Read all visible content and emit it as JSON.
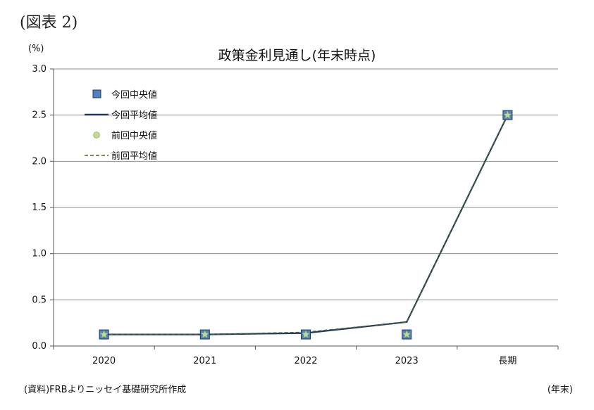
{
  "figure_label": "(図表 2)",
  "unit_label": "(%)",
  "source_note": "(資料)FRBよりニッセイ基礎研究所作成",
  "x_unit_label": "(年末)",
  "chart_data": {
    "type": "line",
    "title": "政策金利見通し(年末時点)",
    "ylabel": "(%)",
    "xlabel": "(年末)",
    "categories": [
      "2020",
      "2021",
      "2022",
      "2023",
      "長期"
    ],
    "ylim": [
      0,
      3.0
    ],
    "yticks": [
      "0.0",
      "0.5",
      "1.0",
      "1.5",
      "2.0",
      "2.5",
      "3.0"
    ],
    "grid": true,
    "legend_position": "top-left",
    "series": [
      {
        "name": "今回中央値",
        "kind": "marker-square",
        "color": "#4f81bd",
        "values": [
          0.125,
          0.125,
          0.125,
          0.125,
          2.5
        ]
      },
      {
        "name": "今回平均値",
        "kind": "line-solid",
        "color": "#1f3864",
        "values": [
          0.125,
          0.125,
          0.14,
          0.26,
          2.5
        ]
      },
      {
        "name": "前回中央値",
        "kind": "marker-circle",
        "color": "#c4d79b",
        "values": [
          0.125,
          0.125,
          0.125,
          0.125,
          2.5
        ]
      },
      {
        "name": "前回平均値",
        "kind": "line-dashed",
        "color": "#4f6228",
        "values": [
          0.125,
          0.125,
          0.15,
          0.26,
          2.5
        ]
      }
    ]
  }
}
